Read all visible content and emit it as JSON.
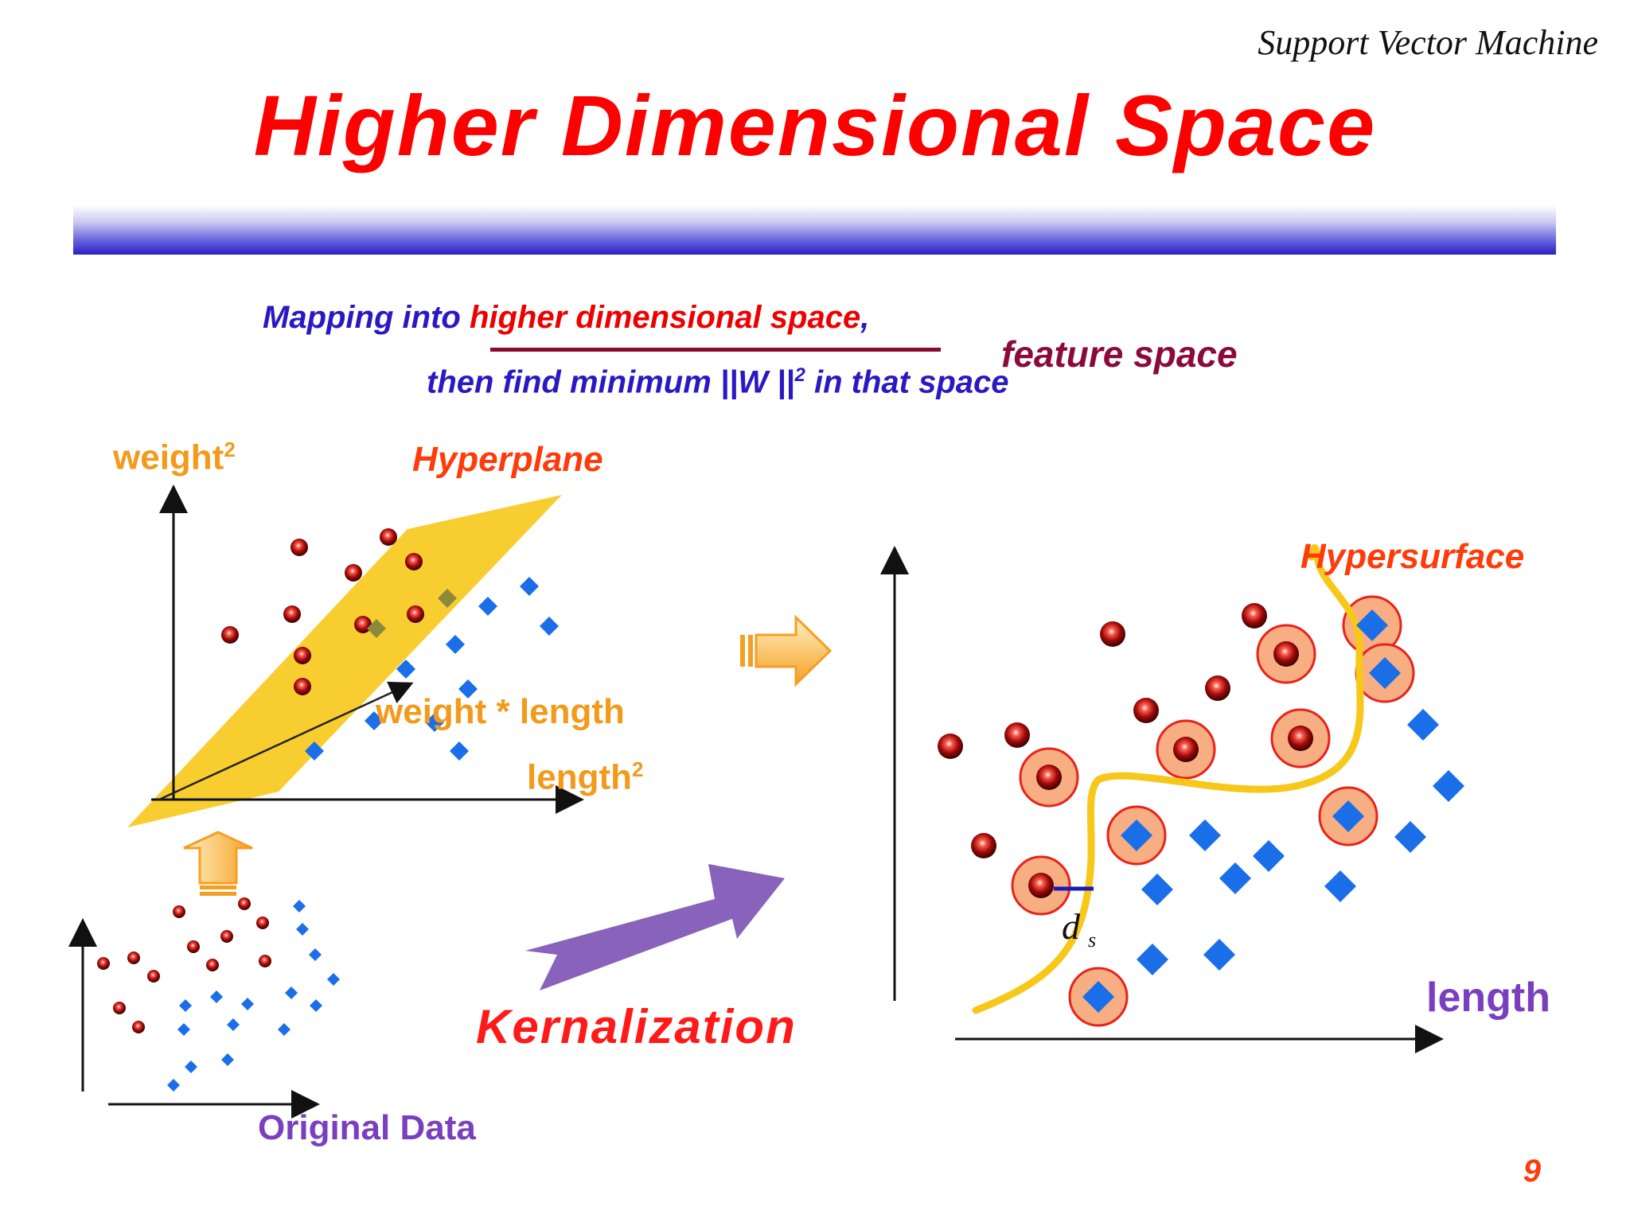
{
  "header": {
    "right_text": "Support Vector Machine"
  },
  "title": "Higher Dimensional Space",
  "subtitle": {
    "line1_part1": "Mapping into ",
    "line1_highlight": "higher dimensional space",
    "line1_part2": ",",
    "annotation": "feature space",
    "line2_pre": "then find minimum ||W ||",
    "line2_sup": "2",
    "line2_post": " in that space"
  },
  "left_plot": {
    "y_label": "weight",
    "y_label_sup": "2",
    "plane_label": "Hyperplane",
    "vector_label": "weight * length",
    "x_label": "length",
    "x_label_sup": "2"
  },
  "right_plot": {
    "surface_label": "Hypersurface",
    "margin_label_main": "d",
    "margin_label_sub": "s",
    "x_label": "length"
  },
  "bottom_left": {
    "caption": "Original Data"
  },
  "arrow_label": "Kernalization",
  "page_number": "9",
  "colors": {
    "title_red": "#ff0000",
    "subtitle_blue": "#2a19c2",
    "feature_maroon": "#8b0a3a",
    "axis_label_orange": "#f39a1a",
    "hyper_label": "#ff3b0a",
    "class_red": "#a00a0a",
    "class_blue": "#1a6fe8",
    "plane_yellow": "#f7c81a",
    "arrow_purple": "#7e55b5",
    "support_circle": "#f7ae83"
  }
}
